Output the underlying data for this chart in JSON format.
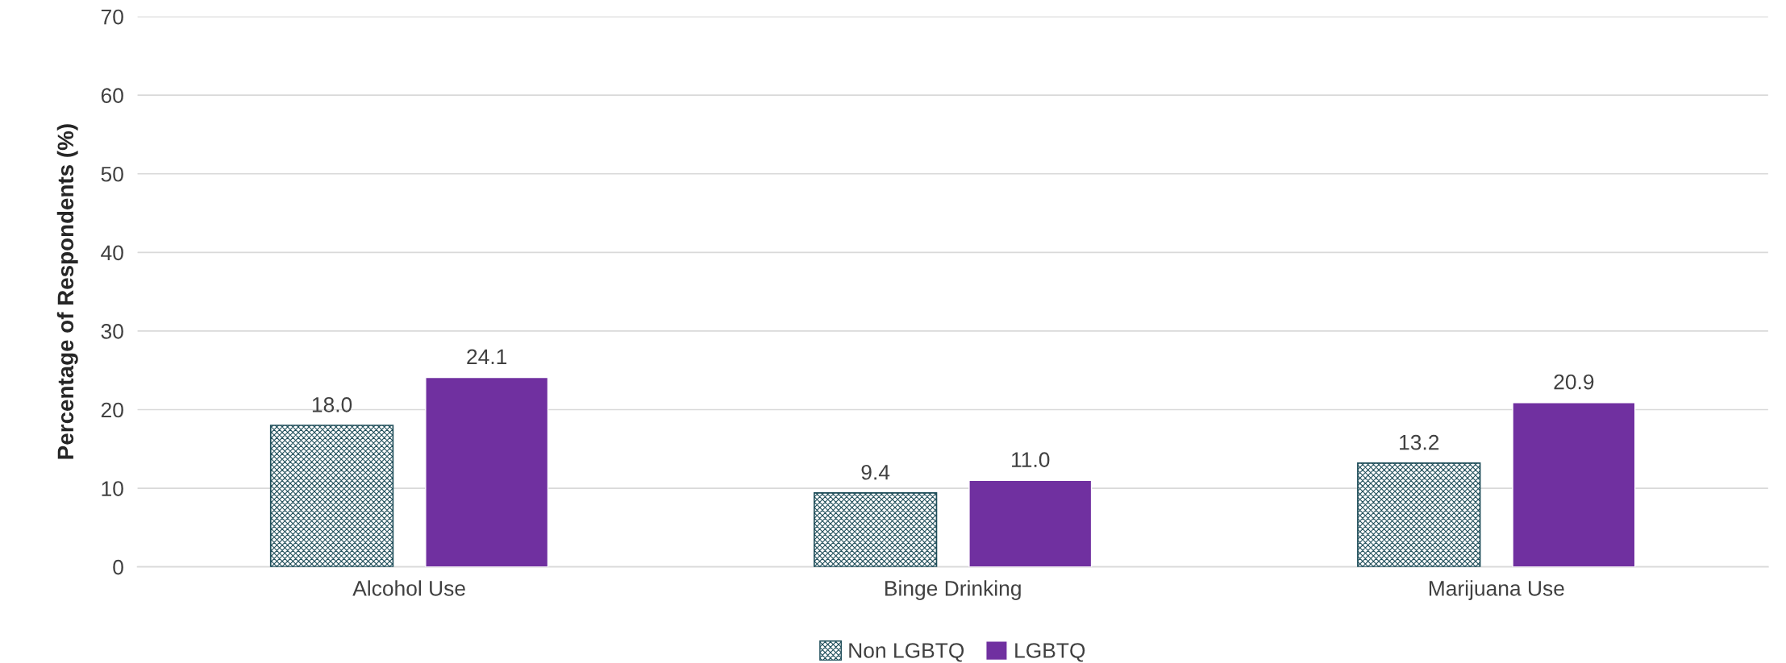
{
  "chart_data": {
    "type": "bar",
    "ylabel": "Percentage of Respondents (%)",
    "categories": [
      "Alcohol Use",
      "Binge Drinking",
      "Marijuana Use"
    ],
    "series": [
      {
        "name": "Non LGBTQ",
        "color": "#1f4e5a",
        "values": [
          18.0,
          9.4,
          13.2
        ],
        "value_labels": [
          "18.0",
          "9.4",
          "13.2"
        ]
      },
      {
        "name": "LGBTQ",
        "color": "#7030a0",
        "values": [
          24.1,
          11.0,
          20.9
        ],
        "value_labels": [
          "24.1",
          "11.0",
          "20.9"
        ]
      }
    ],
    "ylim": [
      0,
      70
    ],
    "yticks": [
      0,
      10,
      20,
      30,
      40,
      50,
      60,
      70
    ],
    "grid": "y",
    "legend": "bottom"
  }
}
